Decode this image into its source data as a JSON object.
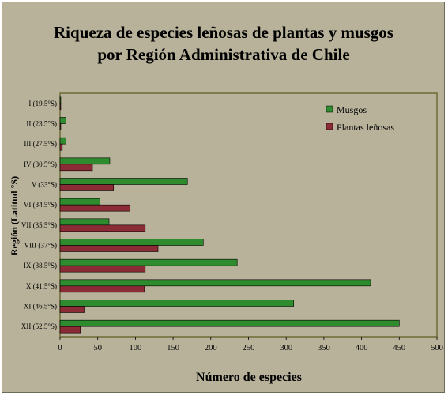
{
  "chart_data": {
    "type": "bar",
    "orientation": "horizontal",
    "title_lines": [
      "Riqueza de especies leñosas de plantas y musgos",
      "por Región Administrativa de Chile"
    ],
    "xlabel": "Número de especies",
    "ylabel": "Región (Latitud °S)",
    "categories": [
      "I (19.5°S)",
      "II (23.5°S)",
      "III (27.5°S)",
      "IV (30.5°S)",
      "V (33°S)",
      "VI (34.5°S)",
      "VII (35.5°S)",
      "VIII (37°S)",
      "IX (38.5°S)",
      "X (41.5°S)",
      "XI (46.5°S)",
      "XII (52.5°S)"
    ],
    "series": [
      {
        "name": "Musgos",
        "color": "#2e8b2e",
        "values": [
          1,
          8,
          8,
          66,
          169,
          53,
          65,
          190,
          235,
          412,
          310,
          450
        ]
      },
      {
        "name": "Plantas leñosas",
        "color": "#8b2b35",
        "values": [
          1,
          1,
          3,
          43,
          71,
          93,
          113,
          130,
          113,
          112,
          32,
          27
        ]
      }
    ],
    "xlim": [
      0,
      500
    ],
    "xticks": [
      0,
      50,
      100,
      150,
      200,
      250,
      300,
      350,
      400,
      450,
      500
    ],
    "legend_position": "top-right",
    "grid": false,
    "plot_background": "#b8b29a",
    "frame_background": "#b8b29a"
  }
}
